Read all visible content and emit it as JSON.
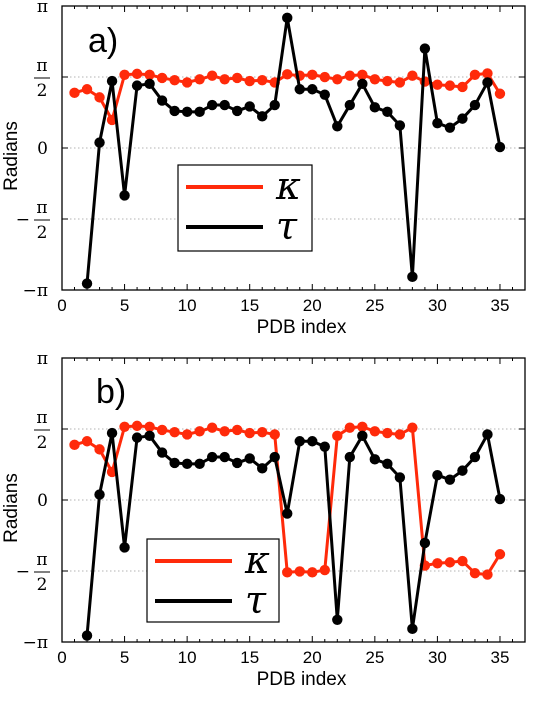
{
  "chart_data": [
    {
      "type": "line",
      "panel_label": "a)",
      "xlabel": "PDB index",
      "ylabel": "Radians",
      "xlim": [
        0,
        37
      ],
      "ylim": [
        -3.1416,
        3.1416
      ],
      "xticks": [
        0,
        5,
        10,
        15,
        20,
        25,
        30,
        35
      ],
      "yticks": [
        {
          "value": 3.1416,
          "label": "π",
          "frac": false
        },
        {
          "value": 1.5708,
          "label": "π/2",
          "num": "π",
          "den": "2",
          "frac": true
        },
        {
          "value": 0,
          "label": "0",
          "frac": false
        },
        {
          "value": -1.5708,
          "label": "−π/2",
          "num": "π",
          "den": "2",
          "sign": "−",
          "frac": true
        },
        {
          "value": -3.1416,
          "label": "−π",
          "frac": false
        }
      ],
      "grid": "horizontal",
      "legend": "center-left",
      "series": [
        {
          "name": "κ",
          "color": "#ff2a0a",
          "x": [
            1,
            2,
            3,
            4,
            5,
            6,
            7,
            8,
            9,
            10,
            11,
            12,
            13,
            14,
            15,
            16,
            17,
            18,
            19,
            20,
            21,
            22,
            23,
            24,
            25,
            26,
            27,
            28,
            29,
            30,
            31,
            32,
            33,
            34,
            35
          ],
          "y": [
            1.22,
            1.3,
            1.12,
            0.62,
            1.62,
            1.64,
            1.62,
            1.55,
            1.5,
            1.45,
            1.52,
            1.6,
            1.52,
            1.55,
            1.48,
            1.5,
            1.45,
            1.63,
            1.6,
            1.62,
            1.57,
            1.52,
            1.6,
            1.62,
            1.52,
            1.48,
            1.45,
            1.6,
            1.47,
            1.4,
            1.38,
            1.35,
            1.62,
            1.65,
            1.2
          ]
        },
        {
          "name": "τ",
          "color": "#000000",
          "x": [
            2,
            3,
            4,
            5,
            6,
            7,
            8,
            9,
            10,
            11,
            12,
            13,
            14,
            15,
            16,
            17,
            18,
            19,
            20,
            21,
            22,
            23,
            24,
            25,
            26,
            27,
            28,
            29,
            30,
            31,
            32,
            33,
            34,
            35
          ],
          "y": [
            -3.0,
            0.12,
            1.48,
            -1.05,
            1.38,
            1.42,
            1.05,
            0.82,
            0.8,
            0.8,
            0.95,
            0.95,
            0.82,
            0.92,
            0.7,
            0.95,
            2.88,
            1.3,
            1.3,
            1.18,
            0.48,
            0.95,
            1.42,
            0.9,
            0.8,
            0.5,
            -2.85,
            2.2,
            0.55,
            0.45,
            0.65,
            0.95,
            1.45,
            0.02
          ]
        }
      ]
    },
    {
      "type": "line",
      "panel_label": "b)",
      "xlabel": "PDB index",
      "ylabel": "Radians",
      "xlim": [
        0,
        37
      ],
      "ylim": [
        -3.1416,
        3.1416
      ],
      "xticks": [
        0,
        5,
        10,
        15,
        20,
        25,
        30,
        35
      ],
      "yticks": [
        {
          "value": 3.1416,
          "label": "π",
          "frac": false
        },
        {
          "value": 1.5708,
          "label": "π/2",
          "num": "π",
          "den": "2",
          "frac": true
        },
        {
          "value": 0,
          "label": "0",
          "frac": false
        },
        {
          "value": -1.5708,
          "label": "−π/2",
          "num": "π",
          "den": "2",
          "sign": "−",
          "frac": true
        },
        {
          "value": -3.1416,
          "label": "−π",
          "frac": false
        }
      ],
      "grid": "horizontal",
      "legend": "bottom-left",
      "series": [
        {
          "name": "κ",
          "color": "#ff2a0a",
          "x": [
            1,
            2,
            3,
            4,
            5,
            6,
            7,
            8,
            9,
            10,
            11,
            12,
            13,
            14,
            15,
            16,
            17,
            18,
            19,
            20,
            21,
            22,
            23,
            24,
            25,
            26,
            27,
            28,
            29,
            30,
            31,
            32,
            33,
            34,
            35
          ],
          "y": [
            1.22,
            1.3,
            1.12,
            0.62,
            1.62,
            1.64,
            1.62,
            1.55,
            1.5,
            1.45,
            1.52,
            1.6,
            1.52,
            1.55,
            1.48,
            1.5,
            1.45,
            -1.6,
            -1.58,
            -1.6,
            -1.55,
            1.42,
            1.6,
            1.62,
            1.52,
            1.48,
            1.45,
            1.6,
            -1.45,
            -1.4,
            -1.38,
            -1.35,
            -1.62,
            -1.65,
            -1.2
          ]
        },
        {
          "name": "τ",
          "color": "#000000",
          "x": [
            2,
            3,
            4,
            5,
            6,
            7,
            8,
            9,
            10,
            11,
            12,
            13,
            14,
            15,
            16,
            17,
            18,
            19,
            20,
            21,
            22,
            23,
            24,
            25,
            26,
            27,
            28,
            29,
            30,
            31,
            32,
            33,
            34,
            35
          ],
          "y": [
            -3.0,
            0.12,
            1.48,
            -1.05,
            1.38,
            1.42,
            1.05,
            0.82,
            0.8,
            0.8,
            0.95,
            0.95,
            0.82,
            0.92,
            0.7,
            0.95,
            -0.3,
            1.3,
            1.3,
            1.18,
            -2.65,
            0.95,
            1.42,
            0.9,
            0.8,
            0.5,
            -2.85,
            -0.95,
            0.55,
            0.45,
            0.65,
            0.95,
            1.45,
            0.02
          ]
        }
      ]
    }
  ]
}
